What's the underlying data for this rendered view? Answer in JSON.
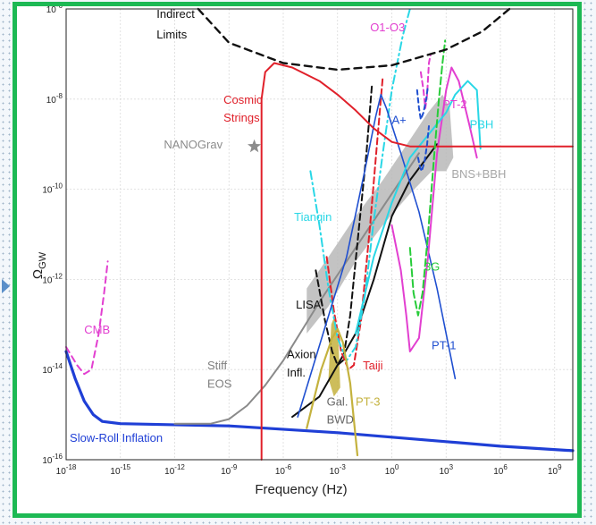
{
  "chart_data": {
    "type": "line",
    "title": "",
    "xlabel": "Frequency (Hz)",
    "ylabel": "Ω",
    "ylabel_sub": "GW",
    "x_scale": "log",
    "y_scale": "log",
    "xlim": [
      1e-18,
      10000000000.0
    ],
    "ylim": [
      1e-16,
      1e-06
    ],
    "grid": true,
    "x_ticks": [
      {
        "b": "10",
        "e": "-18",
        "v": -18
      },
      {
        "b": "10",
        "e": "-15",
        "v": -15
      },
      {
        "b": "10",
        "e": "-12",
        "v": -12
      },
      {
        "b": "10",
        "e": "-9",
        "v": -9
      },
      {
        "b": "10",
        "e": "-6",
        "v": -6
      },
      {
        "b": "10",
        "e": "-3",
        "v": -3
      },
      {
        "b": "10",
        "e": "0",
        "v": 0
      },
      {
        "b": "10",
        "e": "3",
        "v": 3
      },
      {
        "b": "10",
        "e": "6",
        "v": 6
      },
      {
        "b": "10",
        "e": "9",
        "v": 9
      }
    ],
    "y_ticks": [
      {
        "b": "10",
        "e": "-16",
        "v": -16
      },
      {
        "b": "10",
        "e": "-14",
        "v": -14
      },
      {
        "b": "10",
        "e": "-12",
        "v": -12
      },
      {
        "b": "10",
        "e": "-10",
        "v": -10
      },
      {
        "b": "10",
        "e": "-8",
        "v": -8
      },
      {
        "b": "10",
        "e": "-6",
        "v": -6
      }
    ],
    "series": [
      {
        "id": "slowroll",
        "color": "#1f3fd6",
        "width": 3.2,
        "dash": "",
        "points": [
          [
            -18,
            -13.6
          ],
          [
            -17.5,
            -14.2
          ],
          [
            -17,
            -14.7
          ],
          [
            -16.5,
            -15.0
          ],
          [
            -16,
            -15.15
          ],
          [
            -15,
            -15.2
          ],
          [
            -9,
            -15.25
          ],
          [
            -3,
            -15.4
          ],
          [
            0,
            -15.5
          ],
          [
            3,
            -15.6
          ],
          [
            6,
            -15.7
          ],
          [
            10,
            -15.8
          ]
        ]
      },
      {
        "id": "cmb",
        "color": "#e23fd0",
        "width": 2,
        "dash": "7,5",
        "points": [
          [
            -18,
            -13.5
          ],
          [
            -17.4,
            -13.9
          ],
          [
            -17,
            -14.1
          ],
          [
            -16.6,
            -14.0
          ],
          [
            -16.2,
            -13.2
          ],
          [
            -15.9,
            -12.3
          ],
          [
            -15.7,
            -11.6
          ]
        ]
      },
      {
        "id": "stiff",
        "color": "#8a8a8a",
        "width": 2,
        "dash": "",
        "points": [
          [
            -12,
            -15.2
          ],
          [
            -10,
            -15.2
          ],
          [
            -9,
            -15.1
          ],
          [
            -8,
            -14.8
          ],
          [
            -7,
            -14.35
          ],
          [
            -6,
            -13.8
          ],
          [
            -4,
            -12.5
          ],
          [
            -2,
            -11.3
          ],
          [
            0,
            -10.1
          ],
          [
            1.5,
            -9.2
          ]
        ]
      },
      {
        "id": "axion",
        "color": "#111111",
        "width": 2,
        "dash": "",
        "points": [
          [
            -5.5,
            -15.05
          ],
          [
            -4,
            -14.6
          ],
          [
            -2,
            -13.2
          ],
          [
            -1,
            -12.0
          ],
          [
            0,
            -10.6
          ],
          [
            1,
            -9.8
          ],
          [
            2.5,
            -9.0
          ]
        ]
      },
      {
        "id": "lisa",
        "color": "#111111",
        "width": 2,
        "dash": "7,4",
        "points": [
          [
            -4.2,
            -11.8
          ],
          [
            -3.7,
            -12.9
          ],
          [
            -3.3,
            -13.6
          ],
          [
            -3.0,
            -13.9
          ],
          [
            -2.7,
            -13.8
          ],
          [
            -2.3,
            -12.8
          ],
          [
            -1.8,
            -10.8
          ],
          [
            -1.4,
            -9.2
          ],
          [
            -1.1,
            -7.7
          ]
        ]
      },
      {
        "id": "taiji",
        "color": "#e0202a",
        "width": 2,
        "dash": "7,4",
        "points": [
          [
            -3.6,
            -11.5
          ],
          [
            -3.2,
            -12.7
          ],
          [
            -2.8,
            -13.6
          ],
          [
            -2.4,
            -14.0
          ],
          [
            -2.1,
            -13.9
          ],
          [
            -1.7,
            -12.9
          ],
          [
            -1.2,
            -10.8
          ],
          [
            -0.8,
            -8.9
          ],
          [
            -0.5,
            -7.5
          ]
        ]
      },
      {
        "id": "tianqin",
        "color": "#29d7e6",
        "width": 2,
        "dash": "9,4,2,4",
        "points": [
          [
            -4.5,
            -9.6
          ],
          [
            -4.0,
            -10.8
          ],
          [
            -3.5,
            -12.2
          ],
          [
            -3.0,
            -13.3
          ],
          [
            -2.5,
            -13.8
          ],
          [
            -2.0,
            -13.5
          ],
          [
            -1.5,
            -12.4
          ],
          [
            -1.0,
            -10.7
          ],
          [
            -0.5,
            -9.2
          ],
          [
            0.0,
            -7.8
          ],
          [
            0.6,
            -6.6
          ],
          [
            1.0,
            -6.0
          ]
        ]
      },
      {
        "id": "pt1",
        "color": "#1f4fd0",
        "width": 1.6,
        "dash": "",
        "points": [
          [
            -5.2,
            -15.05
          ],
          [
            -3.8,
            -13.2
          ],
          [
            -2.5,
            -11.5
          ],
          [
            -1.5,
            -9.6
          ],
          [
            -0.9,
            -8.4
          ],
          [
            -0.6,
            -7.9
          ],
          [
            -0.3,
            -8.2
          ],
          [
            0.5,
            -9.2
          ],
          [
            1.5,
            -10.5
          ],
          [
            2.5,
            -12.2
          ],
          [
            3.5,
            -14.2
          ]
        ]
      },
      {
        "id": "pt2",
        "color": "#e23fd0",
        "width": 2,
        "dash": "",
        "points": [
          [
            0,
            -10.8
          ],
          [
            0.5,
            -11.8
          ],
          [
            0.8,
            -12.8
          ],
          [
            1.0,
            -13.6
          ],
          [
            1.5,
            -13.3
          ],
          [
            2.0,
            -11.5
          ],
          [
            2.5,
            -9.2
          ],
          [
            3.0,
            -7.8
          ],
          [
            3.3,
            -7.3
          ],
          [
            3.7,
            -7.6
          ],
          [
            4.3,
            -8.6
          ],
          [
            4.7,
            -9.3
          ]
        ]
      },
      {
        "id": "pbh",
        "color": "#29d7e6",
        "width": 2,
        "dash": "",
        "points": [
          [
            -2.0,
            -13.2
          ],
          [
            -1.0,
            -11.5
          ],
          [
            0.0,
            -10.3
          ],
          [
            1.0,
            -9.3
          ],
          [
            2.0,
            -8.8
          ],
          [
            3.0,
            -8.3
          ],
          [
            3.5,
            -7.9
          ],
          [
            4.2,
            -7.6
          ],
          [
            4.7,
            -7.8
          ],
          [
            4.9,
            -9.1
          ]
        ]
      },
      {
        "id": "cosmic",
        "color": "#e0202a",
        "width": 2,
        "dash": "",
        "points": [
          [
            -7.2,
            -16.0
          ],
          [
            -7.2,
            -8.0
          ],
          [
            -7.0,
            -7.4
          ],
          [
            -6.5,
            -7.2
          ],
          [
            -5.5,
            -7.3
          ],
          [
            -4,
            -7.6
          ],
          [
            -3,
            -7.9
          ],
          [
            -2,
            -8.25
          ],
          [
            -1,
            -8.65
          ],
          [
            0,
            -8.95
          ],
          [
            1,
            -9.05
          ],
          [
            3,
            -9.05
          ],
          [
            6,
            -9.05
          ],
          [
            10,
            -9.05
          ]
        ]
      },
      {
        "id": "ptmag",
        "color": "#e23fd0",
        "width": 2,
        "dash": "6,4",
        "points": [
          [
            1.6,
            -7.4
          ],
          [
            1.75,
            -7.8
          ],
          [
            1.85,
            -8.2
          ],
          [
            1.95,
            -7.9
          ],
          [
            2.05,
            -7.2
          ],
          [
            2.15,
            -7.0
          ]
        ]
      },
      {
        "id": "o1o3",
        "color": "#1f4fd0",
        "width": 2,
        "dash": "5,4",
        "points": [
          [
            1.4,
            -7.8
          ],
          [
            1.5,
            -8.2
          ],
          [
            1.6,
            -8.45
          ],
          [
            1.75,
            -8.3
          ],
          [
            1.9,
            -8.0
          ],
          [
            2.0,
            -7.7
          ]
        ]
      },
      {
        "id": "aplus",
        "color": "#1f4fd0",
        "width": 2,
        "dash": "5,4",
        "points": [
          [
            1.45,
            -9.3
          ],
          [
            1.55,
            -9.5
          ],
          [
            1.65,
            -9.6
          ],
          [
            1.8,
            -9.4
          ],
          [
            1.95,
            -9.0
          ],
          [
            2.05,
            -8.6
          ]
        ]
      },
      {
        "id": "g3",
        "color": "#28cc3a",
        "width": 2,
        "dash": "8,4",
        "points": [
          [
            1.0,
            -11.3
          ],
          [
            1.2,
            -12.3
          ],
          [
            1.45,
            -12.8
          ],
          [
            1.7,
            -12.3
          ],
          [
            2.0,
            -11.0
          ],
          [
            2.35,
            -9.2
          ],
          [
            2.6,
            -8.0
          ],
          [
            2.8,
            -7.2
          ],
          [
            2.95,
            -6.7
          ]
        ]
      },
      {
        "id": "pt3",
        "color": "#c4b23e",
        "width": 2.2,
        "dash": "",
        "points": [
          [
            -4.7,
            -15.3
          ],
          [
            -3.9,
            -14.0
          ],
          [
            -3.3,
            -13.3
          ],
          [
            -3.0,
            -13.1
          ],
          [
            -2.7,
            -13.4
          ],
          [
            -2.3,
            -14.3
          ],
          [
            -1.9,
            -15.9
          ]
        ]
      },
      {
        "id": "indirect",
        "color": "#111111",
        "width": 2.4,
        "dash": "8,6",
        "points": [
          [
            -10.7,
            -6.0
          ],
          [
            -9,
            -6.75
          ],
          [
            -6,
            -7.2
          ],
          [
            -3,
            -7.35
          ],
          [
            0,
            -7.25
          ],
          [
            3,
            -6.9
          ],
          [
            5,
            -6.5
          ],
          [
            6.5,
            -6.0
          ]
        ]
      }
    ],
    "bands": [
      {
        "id": "bns",
        "color": "#b9b9b9",
        "upper": [
          [
            -4.7,
            -12.2
          ],
          [
            -3.5,
            -11.5
          ],
          [
            -2,
            -10.6
          ],
          [
            -0.5,
            -9.8
          ],
          [
            1,
            -8.9
          ],
          [
            2,
            -8.3
          ],
          [
            2.8,
            -7.9
          ],
          [
            3.2,
            -8.2
          ],
          [
            3.4,
            -9.3
          ]
        ],
        "lower": [
          [
            3.4,
            -9.3
          ],
          [
            3.0,
            -9.6
          ],
          [
            2.2,
            -9.6
          ],
          [
            1,
            -10.1
          ],
          [
            -0.5,
            -10.8
          ],
          [
            -2,
            -11.6
          ],
          [
            -3.5,
            -12.6
          ],
          [
            -4.7,
            -13.2
          ]
        ]
      },
      {
        "id": "galbwd",
        "color": "#c4b23e",
        "upper": [
          [
            -3.5,
            -14.2
          ],
          [
            -3.35,
            -13.0
          ],
          [
            -3.15,
            -12.8
          ],
          [
            -2.95,
            -13.4
          ],
          [
            -2.85,
            -14.4
          ]
        ],
        "lower": [
          [
            -2.85,
            -14.4
          ],
          [
            -3.2,
            -14.6
          ]
        ]
      }
    ],
    "nanograv": {
      "x": -7.6,
      "y": -9.05,
      "color": "#8c8c8c"
    },
    "annotations": [
      {
        "id": "indirect1",
        "text": "Indirect",
        "color": "#111111",
        "x": -13.0,
        "y": -6.2
      },
      {
        "id": "indirect2",
        "text": "Limits",
        "color": "#111111",
        "x": -13.0,
        "y": -6.65
      },
      {
        "id": "o1o3",
        "text": "O1-O3",
        "color": "#e23fd0",
        "x": -1.2,
        "y": -6.5
      },
      {
        "id": "pt2",
        "text": "PT-2",
        "color": "#e23fd0",
        "x": 2.8,
        "y": -8.2
      },
      {
        "id": "cosmic1",
        "text": "Cosmic",
        "color": "#e0202a",
        "x": -9.3,
        "y": -8.1
      },
      {
        "id": "cosmic2",
        "text": "Strings",
        "color": "#e0202a",
        "x": -9.3,
        "y": -8.5
      },
      {
        "id": "aplus",
        "text": "A+",
        "color": "#1f4fd0",
        "x": 0.0,
        "y": -8.55
      },
      {
        "id": "pbh",
        "text": "PBH",
        "color": "#29d7e6",
        "x": 4.3,
        "y": -8.65
      },
      {
        "id": "nanograv",
        "text": "NANOGrav",
        "color": "#8c8c8c",
        "x": -12.6,
        "y": -9.1
      },
      {
        "id": "bns",
        "text": "BNS+BBH",
        "color": "#a7a7a7",
        "x": 3.3,
        "y": -9.75
      },
      {
        "id": "tianqin",
        "text": "Tianqin",
        "color": "#29d7e6",
        "x": -5.4,
        "y": -10.7
      },
      {
        "id": "g3",
        "text": "3G",
        "color": "#28cc3a",
        "x": 1.8,
        "y": -11.8
      },
      {
        "id": "lisa",
        "text": "LISA",
        "color": "#111111",
        "x": -5.3,
        "y": -12.65
      },
      {
        "id": "cmb",
        "text": "CMB",
        "color": "#e23fd0",
        "x": -17.0,
        "y": -13.2
      },
      {
        "id": "pt1",
        "text": "PT-1",
        "color": "#1f4fd0",
        "x": 2.2,
        "y": -13.55
      },
      {
        "id": "axion1",
        "text": "Axion",
        "color": "#111111",
        "x": -5.8,
        "y": -13.75
      },
      {
        "id": "axion2",
        "text": "Infl.",
        "color": "#111111",
        "x": -5.8,
        "y": -14.15
      },
      {
        "id": "stiff1",
        "text": "Stiff",
        "color": "#7f7f7f",
        "x": -10.2,
        "y": -14.0
      },
      {
        "id": "stiff2",
        "text": "EOS",
        "color": "#7f7f7f",
        "x": -10.2,
        "y": -14.4
      },
      {
        "id": "taiji",
        "text": "Taiji",
        "color": "#e0202a",
        "x": -1.6,
        "y": -14.0
      },
      {
        "id": "gal1",
        "text": "Gal.",
        "color": "#666666",
        "x": -3.6,
        "y": -14.8
      },
      {
        "id": "gal2",
        "text": "BWD",
        "color": "#666666",
        "x": -3.6,
        "y": -15.2
      },
      {
        "id": "pt3",
        "text": "PT-3",
        "color": "#c4b23e",
        "x": -2.0,
        "y": -14.8
      },
      {
        "id": "slowroll",
        "text": "Slow-Roll Inflation",
        "color": "#1f3fd6",
        "x": -17.8,
        "y": -15.6
      }
    ]
  }
}
